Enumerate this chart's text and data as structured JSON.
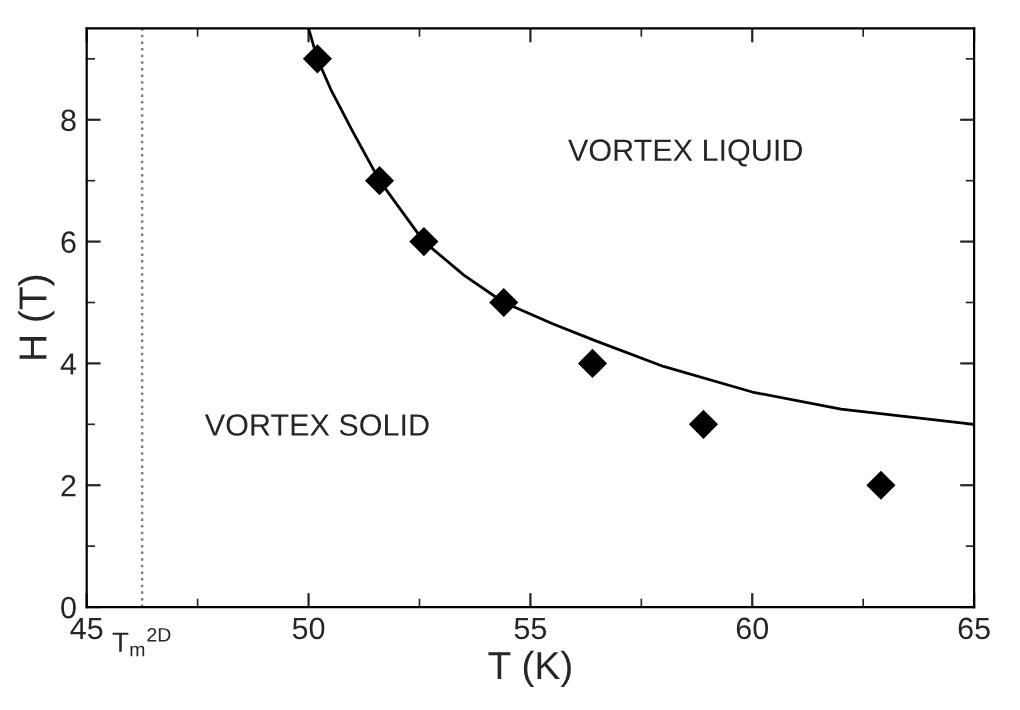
{
  "chart_data": {
    "type": "scatter",
    "xlabel": "T (K)",
    "ylabel": "H (T)",
    "xlim": [
      45,
      65
    ],
    "xticks": [
      45,
      50,
      55,
      60,
      65
    ],
    "ylim": [
      0,
      9.5
    ],
    "yticks": [
      0,
      2,
      4,
      6,
      8
    ],
    "grid": false,
    "legend": false,
    "series": [
      {
        "marker": "diamond",
        "color": "#000000",
        "x": [
          50.2,
          51.6,
          52.6,
          54.4,
          56.4,
          58.9,
          62.9
        ],
        "values": [
          9,
          7,
          6,
          5,
          4,
          3,
          2
        ]
      },
      {
        "type": "line",
        "marker": "none",
        "line_style": "solid",
        "color": "#000000",
        "x": [
          50.0,
          50.2,
          50.5,
          51.0,
          51.6,
          52.6,
          53.5,
          54.4,
          55.5,
          56.4,
          58.0,
          60.0,
          62.0,
          65.0
        ],
        "values": [
          9.5,
          9.0,
          8.5,
          7.8,
          7.0,
          6.0,
          5.45,
          5.0,
          4.65,
          4.39,
          3.95,
          3.53,
          3.25,
          3.0
        ]
      }
    ],
    "ref_lines": [
      {
        "axis": "x",
        "value": 46.25,
        "label": "T$_{m}$$^{2D}$",
        "color": "#808080",
        "line_style": "dotted"
      }
    ],
    "annotations": [
      "VORTEX LIQUID",
      "VORTEX SOLID"
    ]
  }
}
